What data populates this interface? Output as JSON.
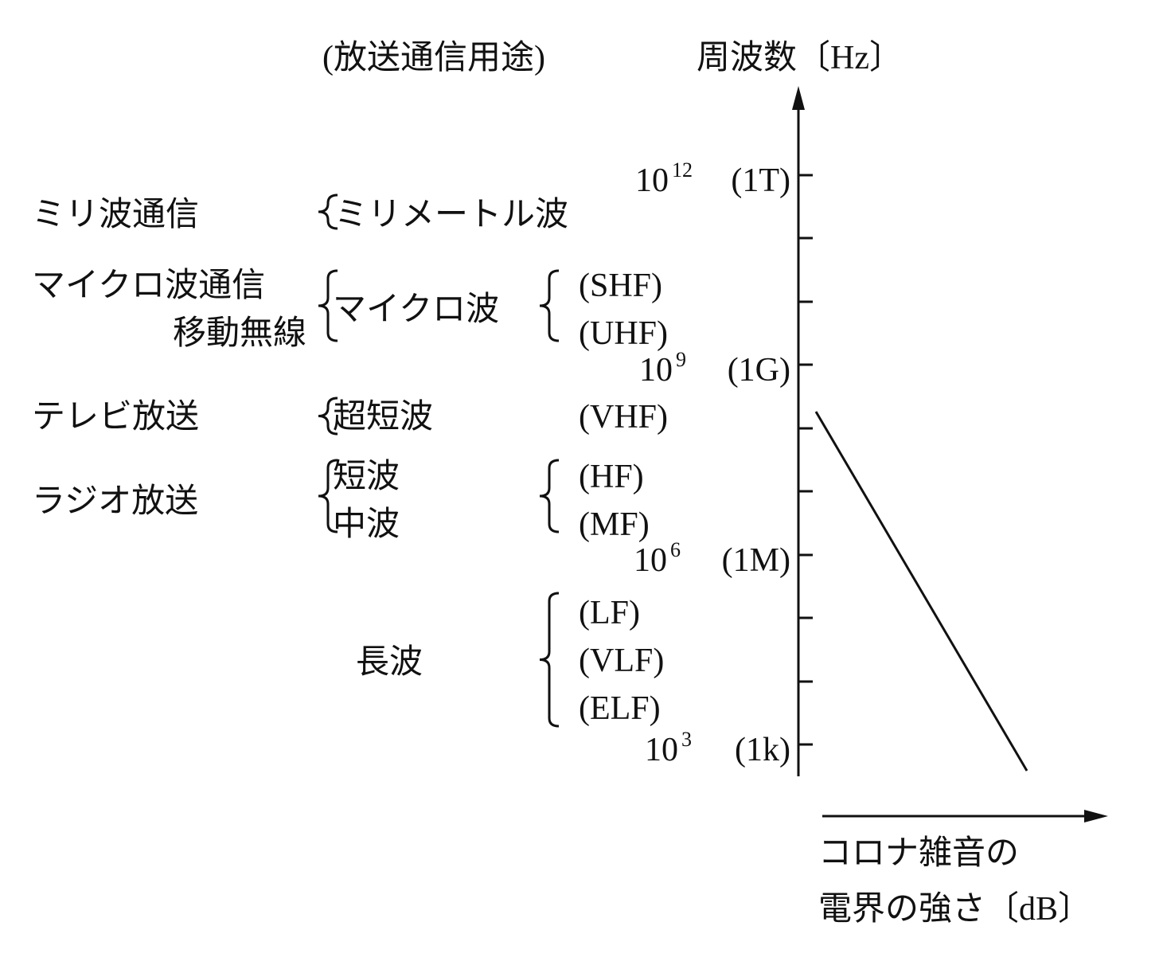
{
  "header": {
    "usage_title": "(放送通信用途)",
    "axis_title": "周波数〔Hz〕"
  },
  "axis_ticks": [
    {
      "base": "10",
      "exponent": "12",
      "prefix": "(1T)"
    },
    {
      "base": "10",
      "exponent": "9",
      "prefix": "(1G)"
    },
    {
      "base": "10",
      "exponent": "6",
      "prefix": "(1M)"
    },
    {
      "base": "10",
      "exponent": "3",
      "prefix": "(1k)"
    }
  ],
  "uses": [
    "ミリ波通信",
    "マイクロ波通信",
    "移動無線",
    "テレビ放送",
    "ラジオ放送"
  ],
  "bands": [
    "ミリメートル波",
    "マイクロ波",
    "超短波",
    "短波",
    "中波",
    "長波"
  ],
  "designations": [
    "(SHF)",
    "(UHF)",
    "(VHF)",
    "(HF)",
    "(MF)",
    "(LF)",
    "(VLF)",
    "(ELF)"
  ],
  "x_axis_title": [
    "コロナ雑音の",
    "電界の強さ〔dB〕"
  ]
}
